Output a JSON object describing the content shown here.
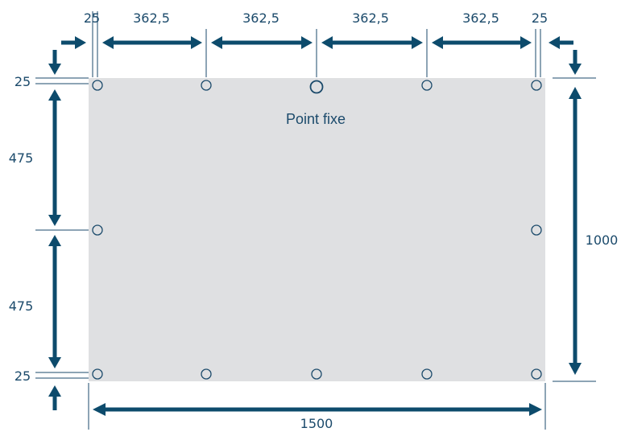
{
  "diagram": {
    "fixed_point_label": "Point fixe",
    "colors": {
      "panel": "#dfe0e2",
      "ink": "#0d4b6c",
      "text": "#1b4a6b"
    },
    "dimensions": {
      "top_margin_left": "25",
      "top_spacing_1": "362,5",
      "top_spacing_2": "362,5",
      "top_spacing_3": "362,5",
      "top_spacing_4": "362,5",
      "top_margin_right": "25",
      "left_margin_top": "25",
      "left_spacing_1": "475",
      "left_spacing_2": "475",
      "left_margin_bottom": "25",
      "total_height": "1000",
      "total_width": "1500"
    }
  }
}
